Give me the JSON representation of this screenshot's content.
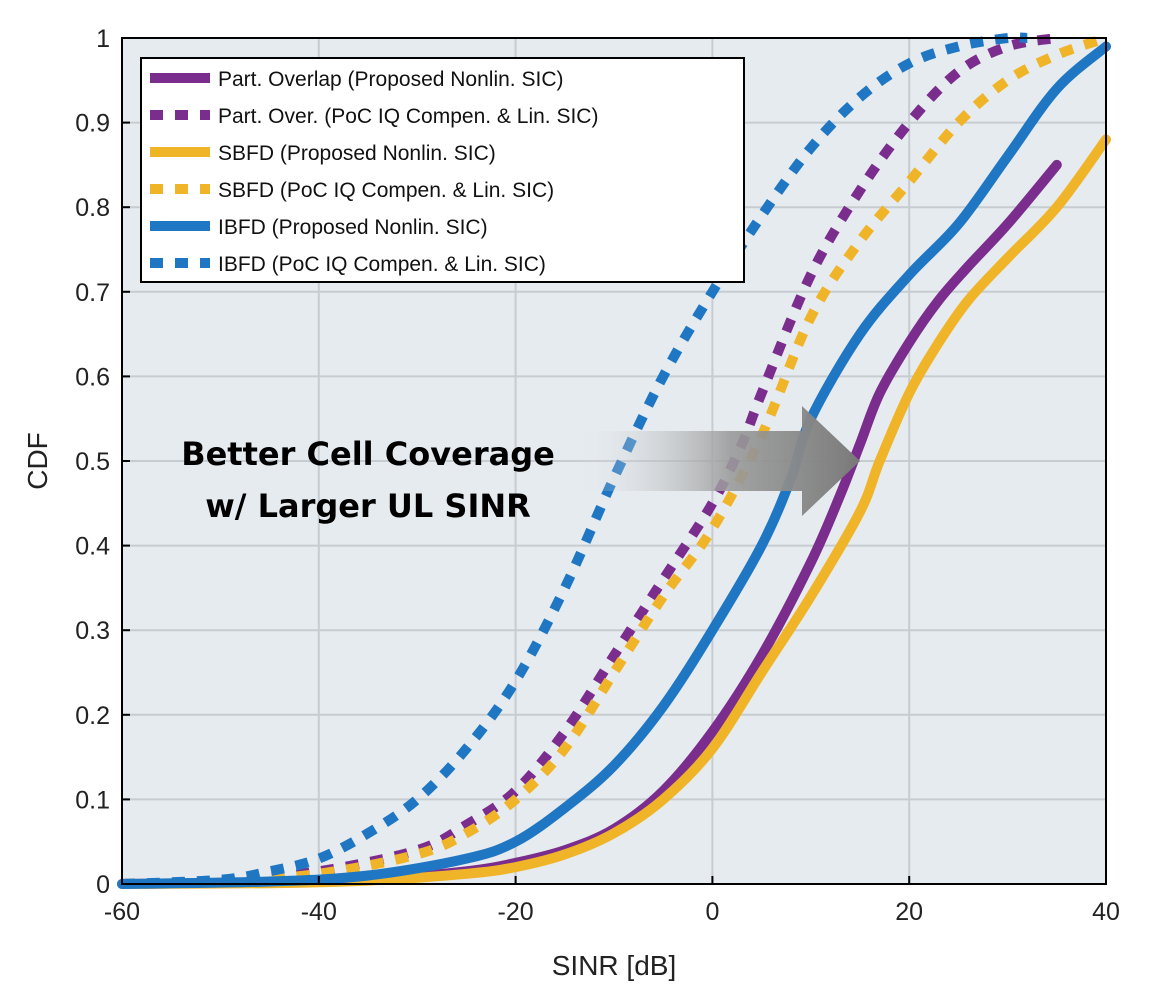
{
  "chart_data": {
    "type": "line",
    "xlabel": "SINR [dB]",
    "ylabel": "CDF",
    "xlim": [
      -60,
      40
    ],
    "ylim": [
      0,
      1
    ],
    "xticks": [
      -60,
      -40,
      -20,
      0,
      20,
      40
    ],
    "yticks": [
      0,
      0.1,
      0.2,
      0.3,
      0.4,
      0.5,
      0.6,
      0.7,
      0.8,
      0.9,
      1
    ],
    "xtick_labels": [
      "-60",
      "-40",
      "-20",
      "0",
      "20",
      "40"
    ],
    "ytick_labels": [
      "0",
      "0.1",
      "0.2",
      "0.3",
      "0.4",
      "0.5",
      "0.6",
      "0.7",
      "0.8",
      "0.9",
      "1"
    ],
    "grid": true,
    "legend_position": "top-left",
    "annotation": {
      "lines": [
        "Better Cell Coverage",
        "w/ Larger UL SINR"
      ],
      "arrow_from": [
        -14,
        0.5
      ],
      "arrow_to": [
        15,
        0.5
      ]
    },
    "series": [
      {
        "name": "Part. Overlap (Proposed Nonlin. SIC)",
        "color": "#7B2D8E",
        "style": "solid",
        "x": [
          -60,
          -45,
          -35,
          -25,
          -20,
          -15,
          -10,
          -5,
          0,
          5,
          10,
          13,
          15,
          17,
          20,
          23,
          26,
          30,
          35
        ],
        "y": [
          0.0,
          0.002,
          0.005,
          0.015,
          0.025,
          0.04,
          0.065,
          0.11,
          0.18,
          0.27,
          0.38,
          0.46,
          0.52,
          0.58,
          0.64,
          0.69,
          0.73,
          0.78,
          0.85
        ]
      },
      {
        "name": "Part. Over. (PoC IQ Compen. & Lin. SIC)",
        "color": "#7B2D8E",
        "style": "dotted",
        "x": [
          -60,
          -50,
          -40,
          -30,
          -25,
          -20,
          -15,
          -10,
          -5,
          0,
          3,
          5,
          10,
          15,
          20,
          25,
          30,
          35
        ],
        "y": [
          0.0,
          0.003,
          0.015,
          0.04,
          0.07,
          0.11,
          0.18,
          0.27,
          0.36,
          0.45,
          0.52,
          0.58,
          0.72,
          0.82,
          0.9,
          0.96,
          0.99,
          1.0
        ]
      },
      {
        "name": "SBFD (Proposed Nonlin. SIC)",
        "color": "#F0B429",
        "style": "solid",
        "x": [
          -60,
          -45,
          -35,
          -25,
          -20,
          -15,
          -10,
          -5,
          0,
          5,
          10,
          15,
          17,
          20,
          23,
          26,
          30,
          35,
          40
        ],
        "y": [
          0.0,
          0.001,
          0.004,
          0.012,
          0.02,
          0.035,
          0.06,
          0.1,
          0.16,
          0.25,
          0.34,
          0.44,
          0.5,
          0.58,
          0.64,
          0.69,
          0.74,
          0.8,
          0.88
        ]
      },
      {
        "name": "SBFD (PoC IQ Compen. & Lin. SIC)",
        "color": "#F0B429",
        "style": "dotted",
        "x": [
          -60,
          -50,
          -40,
          -30,
          -25,
          -20,
          -15,
          -10,
          -5,
          0,
          5,
          10,
          15,
          20,
          25,
          30,
          35,
          40
        ],
        "y": [
          0.0,
          0.003,
          0.012,
          0.035,
          0.06,
          0.1,
          0.16,
          0.25,
          0.34,
          0.42,
          0.53,
          0.67,
          0.76,
          0.83,
          0.9,
          0.95,
          0.98,
          1.0
        ]
      },
      {
        "name": "IBFD (Proposed Nonlin. SIC)",
        "color": "#1F77C4",
        "style": "solid",
        "x": [
          -60,
          -45,
          -35,
          -25,
          -20,
          -15,
          -10,
          -5,
          0,
          5,
          8,
          10,
          15,
          20,
          25,
          30,
          35,
          40
        ],
        "y": [
          0.0,
          0.003,
          0.01,
          0.03,
          0.05,
          0.09,
          0.14,
          0.21,
          0.3,
          0.4,
          0.48,
          0.55,
          0.65,
          0.72,
          0.78,
          0.86,
          0.94,
          0.99
        ]
      },
      {
        "name": "IBFD (PoC IQ Compen. & Lin. SIC)",
        "color": "#1F77C4",
        "style": "dotted",
        "x": [
          -60,
          -50,
          -45,
          -40,
          -35,
          -30,
          -25,
          -20,
          -15,
          -10,
          -5,
          0,
          5,
          10,
          15,
          20,
          25,
          30,
          32
        ],
        "y": [
          0.0,
          0.005,
          0.015,
          0.03,
          0.06,
          0.1,
          0.16,
          0.24,
          0.35,
          0.48,
          0.6,
          0.7,
          0.79,
          0.87,
          0.93,
          0.97,
          0.99,
          1.0,
          1.0
        ]
      }
    ]
  }
}
